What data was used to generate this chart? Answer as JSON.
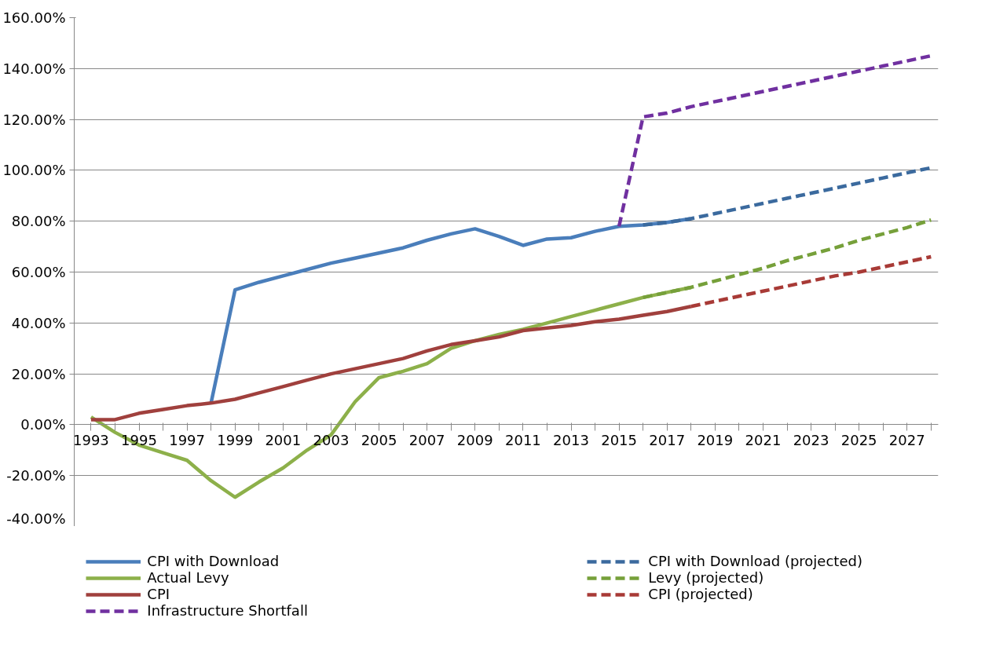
{
  "chart_data": {
    "type": "line",
    "x": [
      1993,
      1994,
      1995,
      1996,
      1997,
      1998,
      1999,
      2000,
      2001,
      2002,
      2003,
      2004,
      2005,
      2006,
      2007,
      2008,
      2009,
      2010,
      2011,
      2012,
      2013,
      2014,
      2015,
      2016,
      2017,
      2018,
      2019,
      2020,
      2021,
      2022,
      2023,
      2024,
      2025,
      2026,
      2027,
      2028
    ],
    "series": [
      {
        "name": "CPI with Download",
        "color": "#4a7ebb",
        "line_style": "solid",
        "values": [
          null,
          null,
          null,
          null,
          null,
          8.5,
          53,
          56,
          58.5,
          61,
          63.5,
          65.5,
          67.5,
          69.5,
          72.5,
          75,
          77,
          74,
          70.5,
          73,
          73.5,
          76,
          78,
          78.5,
          79.5,
          81,
          null,
          null,
          null,
          null,
          null,
          null,
          null,
          null,
          null,
          null
        ]
      },
      {
        "name": "Actual Levy",
        "color": "#8db04a",
        "line_style": "solid",
        "values": [
          3,
          -3,
          -8,
          -11,
          -14,
          -22,
          -28.5,
          -22.5,
          -17,
          -10,
          -4,
          9,
          18.5,
          21,
          24,
          30,
          33,
          35.5,
          37.5,
          40,
          42.5,
          45,
          47.5,
          50,
          52,
          54,
          null,
          null,
          null,
          null,
          null,
          null,
          null,
          null,
          null,
          null
        ]
      },
      {
        "name": "CPI",
        "color": "#a0403d",
        "line_style": "solid",
        "values": [
          2,
          2,
          4.5,
          6,
          7.5,
          8.5,
          10,
          12.5,
          15,
          17.5,
          20,
          22,
          24,
          26,
          29,
          31.5,
          33,
          34.5,
          37,
          38,
          39,
          40.5,
          41.5,
          43,
          44.5,
          46.5,
          null,
          null,
          null,
          null,
          null,
          null,
          null,
          null,
          null,
          null
        ]
      },
      {
        "name": "Infrastructure Shortfall",
        "color": "#7030a0",
        "line_style": "dashed",
        "values": [
          null,
          null,
          null,
          null,
          null,
          null,
          null,
          null,
          null,
          null,
          null,
          null,
          null,
          null,
          null,
          null,
          null,
          null,
          null,
          null,
          null,
          null,
          78,
          121,
          122.5,
          125,
          127,
          129,
          131,
          133,
          135,
          137,
          139,
          141,
          143,
          145
        ]
      },
      {
        "name": "CPI with Download (projected)",
        "color": "#3b6a9e",
        "line_style": "dashed",
        "values": [
          null,
          null,
          null,
          null,
          null,
          null,
          null,
          null,
          null,
          null,
          null,
          null,
          null,
          null,
          null,
          null,
          null,
          null,
          null,
          null,
          null,
          null,
          null,
          78.5,
          79.5,
          81,
          83,
          85,
          87,
          89,
          91,
          93,
          95,
          97,
          99,
          101
        ]
      },
      {
        "name": "Levy (projected)",
        "color": "#76a03a",
        "line_style": "dashed",
        "values": [
          null,
          null,
          null,
          null,
          null,
          null,
          null,
          null,
          null,
          null,
          null,
          null,
          null,
          null,
          null,
          null,
          null,
          null,
          null,
          null,
          null,
          null,
          null,
          50,
          52,
          54,
          56.5,
          59,
          61.5,
          64.5,
          67,
          69.5,
          72.5,
          75,
          77.5,
          80.5
        ]
      },
      {
        "name": "CPI (projected)",
        "color": "#a83a36",
        "line_style": "dashed",
        "values": [
          null,
          null,
          null,
          null,
          null,
          null,
          null,
          null,
          null,
          null,
          null,
          null,
          null,
          null,
          null,
          null,
          null,
          null,
          null,
          null,
          null,
          null,
          null,
          null,
          null,
          46.5,
          48.5,
          50.5,
          52.5,
          54.5,
          56.5,
          58.5,
          60,
          62,
          64,
          66
        ]
      }
    ],
    "xlim": [
      1992.3,
      2028.3
    ],
    "xticks": [
      1993,
      {
        "value": 1994,
        "label": null
      },
      1995,
      {
        "value": 1996,
        "label": null
      },
      1997,
      {
        "value": 1998,
        "label": null
      },
      1999,
      {
        "value": 2000,
        "label": null
      },
      2001,
      {
        "value": 2002,
        "label": null
      },
      2003,
      {
        "value": 2004,
        "label": null
      },
      2005,
      {
        "value": 2006,
        "label": null
      },
      2007,
      {
        "value": 2008,
        "label": null
      },
      2009,
      {
        "value": 2010,
        "label": null
      },
      2011,
      {
        "value": 2012,
        "label": null
      },
      2013,
      {
        "value": 2014,
        "label": null
      },
      2015,
      {
        "value": 2016,
        "label": null
      },
      2017,
      {
        "value": 2018,
        "label": null
      },
      2019,
      {
        "value": 2020,
        "label": null
      },
      2021,
      {
        "value": 2022,
        "label": null
      },
      2023,
      {
        "value": 2024,
        "label": null
      },
      2025,
      {
        "value": 2026,
        "label": null
      },
      2027,
      {
        "value": 2028,
        "label": null
      }
    ],
    "ylim": [
      -40,
      160
    ],
    "yticks": [
      {
        "value": -40,
        "label": "-40.00%"
      },
      {
        "value": -20,
        "label": "-20.00%"
      },
      {
        "value": 0,
        "label": "0.00%"
      },
      {
        "value": 20,
        "label": "20.00%"
      },
      {
        "value": 40,
        "label": "40.00%"
      },
      {
        "value": 60,
        "label": "60.00%"
      },
      {
        "value": 80,
        "label": "80.00%"
      },
      {
        "value": 100,
        "label": "100.00%"
      },
      {
        "value": 120,
        "label": "120.00%"
      },
      {
        "value": 140,
        "label": "140.00%"
      },
      {
        "value": 160,
        "label": "160.00%"
      }
    ],
    "grid": "y",
    "legend": "bottom",
    "marker": "none"
  }
}
